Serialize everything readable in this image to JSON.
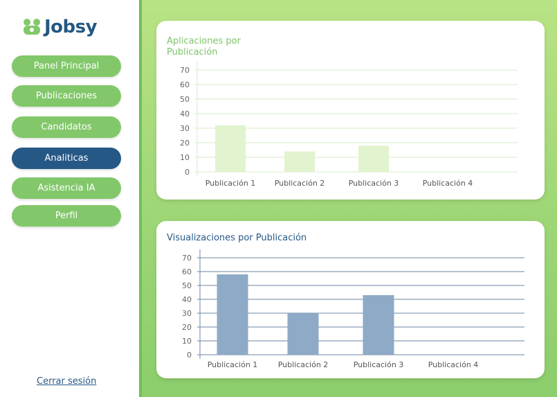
{
  "app": {
    "name": "Jobsy"
  },
  "sidebar": {
    "items": [
      {
        "label": "Panel Principal"
      },
      {
        "label": "Publicaciones"
      },
      {
        "label": "Candidatos"
      },
      {
        "label": "Analiticas",
        "active": true
      },
      {
        "label": "Asistencia IA"
      },
      {
        "label": "Perfil"
      }
    ],
    "logout_label": "Cerrar sesión"
  },
  "colors": {
    "brand_blue": "#265886",
    "brand_green": "#82c86a"
  },
  "chart_data": [
    {
      "type": "bar",
      "title": "Aplicaciones por Publicación",
      "categories": [
        "Publicación 1",
        "Publicación 2",
        "Publicación 3",
        "Publicación 4"
      ],
      "values": [
        32,
        14,
        18,
        0
      ],
      "ylim": [
        0,
        70
      ],
      "yticks": [
        0,
        10,
        20,
        30,
        40,
        50,
        60,
        70
      ],
      "grid": true,
      "bar_color": "#e2f3cf",
      "title_color": "#7cc467"
    },
    {
      "type": "bar",
      "title": "Visualizaciones por Publicación",
      "categories": [
        "Publicación 1",
        "Publicación 2",
        "Publicación 3",
        "Publicación 4"
      ],
      "values": [
        58,
        30,
        43,
        0
      ],
      "ylim": [
        0,
        70
      ],
      "yticks": [
        0,
        10,
        20,
        30,
        40,
        50,
        60,
        70
      ],
      "grid": true,
      "bar_color": "#8eaac6",
      "title_color": "#265886"
    }
  ]
}
